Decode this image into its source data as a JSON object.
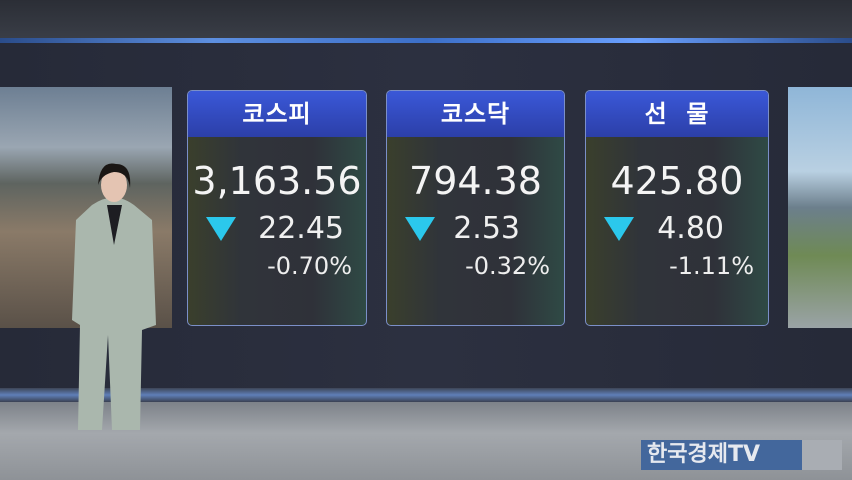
{
  "cards": [
    {
      "title": "코스피",
      "value": "3,163.56",
      "change": "22.45",
      "percent": "-0.70%",
      "direction": "down"
    },
    {
      "title": "코스닥",
      "value": "794.38",
      "change": "2.53",
      "percent": "-0.32%",
      "direction": "down"
    },
    {
      "title": "선  물",
      "value": "425.80",
      "change": "4.80",
      "percent": "-1.11%",
      "direction": "down"
    }
  ],
  "colors": {
    "header": "#3048c0",
    "down": "#2bc8ec"
  },
  "logo": "한국경제TV"
}
